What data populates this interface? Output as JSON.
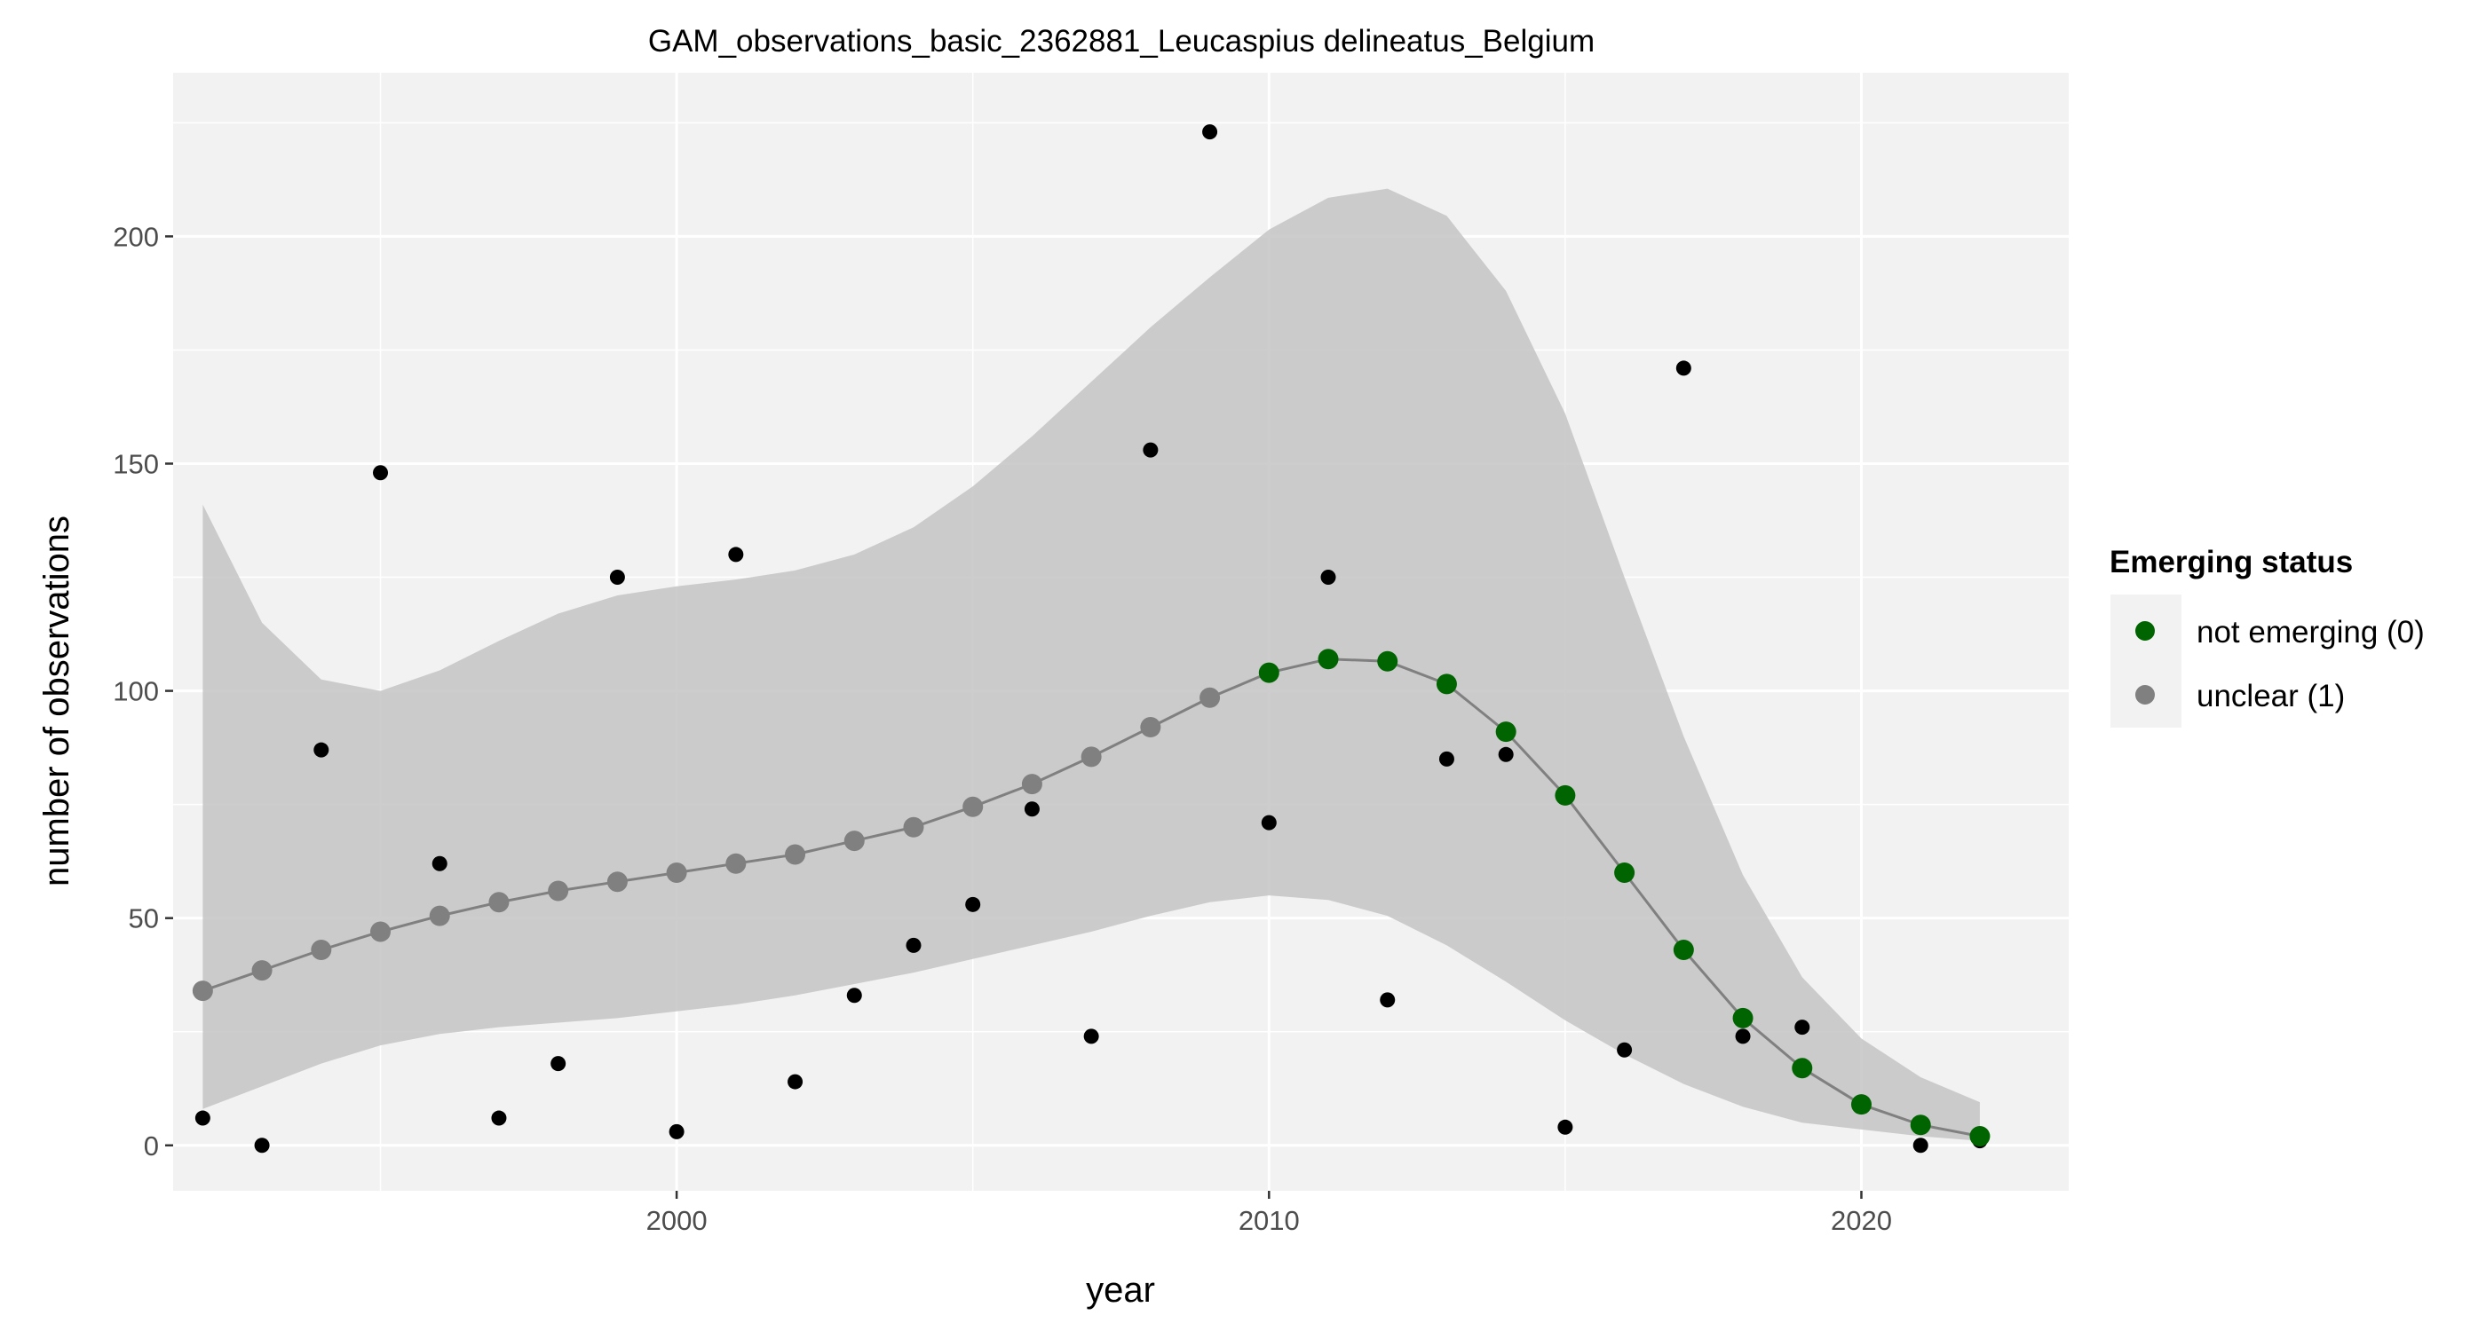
{
  "chart_data": {
    "type": "scatter",
    "title": "GAM_observations_basic_2362881_Leucaspius delineatus_Belgium",
    "xlabel": "year",
    "ylabel": "number of observations",
    "xlim": [
      1991.5,
      2023.5
    ],
    "ylim": [
      -10,
      236
    ],
    "x_ticks": [
      2000,
      2010,
      2020
    ],
    "y_ticks": [
      0,
      50,
      100,
      150,
      200
    ],
    "grid": true,
    "legend_position": "right",
    "legend": {
      "title": "Emerging status",
      "entries": [
        {
          "label": "not emerging (0)",
          "color": "#006400"
        },
        {
          "label": "unclear (1)",
          "color": "#808080"
        }
      ]
    },
    "colors": {
      "panel": "#f2f2f2",
      "grid": "#ffffff",
      "ribbon": "#c4c4c4",
      "fit_line": "#808080",
      "observed_point": "#000000"
    },
    "observed": {
      "x": [
        1992,
        1993,
        1994,
        1995,
        1996,
        1997,
        1998,
        1999,
        2000,
        2001,
        2002,
        2003,
        2004,
        2005,
        2006,
        2007,
        2008,
        2009,
        2010,
        2011,
        2012,
        2013,
        2014,
        2015,
        2016,
        2017,
        2018,
        2019,
        2021,
        2022
      ],
      "y": [
        6,
        0,
        87,
        148,
        62,
        6,
        18,
        125,
        3,
        130,
        14,
        33,
        44,
        53,
        74,
        24,
        153,
        223,
        71,
        125,
        32,
        85,
        86,
        4,
        21,
        171,
        24,
        26,
        0,
        1
      ]
    },
    "fit": {
      "x": [
        1992,
        1993,
        1994,
        1995,
        1996,
        1997,
        1998,
        1999,
        2000,
        2001,
        2002,
        2003,
        2004,
        2005,
        2006,
        2007,
        2008,
        2009,
        2010,
        2011,
        2012,
        2013,
        2014,
        2015,
        2016,
        2017,
        2018,
        2019,
        2020,
        2021,
        2022
      ],
      "y": [
        34,
        38.5,
        43,
        47,
        50.5,
        53.5,
        56,
        58,
        60,
        62,
        64,
        67,
        70,
        74.5,
        79.5,
        85.5,
        92,
        98.5,
        104,
        107,
        106.5,
        101.5,
        91,
        77,
        60,
        43,
        28,
        17,
        9,
        4.5,
        2
      ],
      "lower": [
        8,
        13,
        18,
        22,
        24.5,
        26,
        27,
        28,
        29.5,
        31,
        33,
        35.5,
        38,
        41,
        44,
        47,
        50.5,
        53.5,
        55,
        54,
        50.5,
        44,
        36,
        27.5,
        20,
        13.5,
        8.5,
        5,
        3.5,
        2,
        1
      ],
      "upper": [
        141,
        115,
        102.5,
        100,
        104.5,
        111,
        117,
        121,
        123,
        124.5,
        126.5,
        130,
        136,
        145,
        156,
        168,
        180,
        191,
        201.5,
        208.5,
        210.5,
        204.5,
        188,
        161,
        125,
        90,
        59.5,
        37,
        23.5,
        15,
        9.5
      ],
      "status": [
        "unclear (1)",
        "unclear (1)",
        "unclear (1)",
        "unclear (1)",
        "unclear (1)",
        "unclear (1)",
        "unclear (1)",
        "unclear (1)",
        "unclear (1)",
        "unclear (1)",
        "unclear (1)",
        "unclear (1)",
        "unclear (1)",
        "unclear (1)",
        "unclear (1)",
        "unclear (1)",
        "unclear (1)",
        "unclear (1)",
        "not emerging (0)",
        "not emerging (0)",
        "not emerging (0)",
        "not emerging (0)",
        "not emerging (0)",
        "not emerging (0)",
        "not emerging (0)",
        "not emerging (0)",
        "not emerging (0)",
        "not emerging (0)",
        "not emerging (0)",
        "not emerging (0)",
        "not emerging (0)"
      ]
    }
  }
}
